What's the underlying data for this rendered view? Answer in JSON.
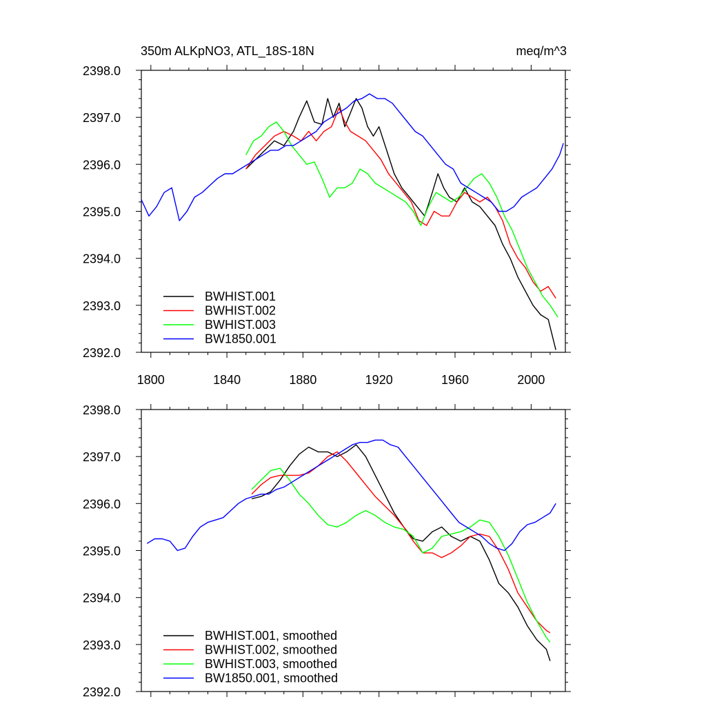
{
  "chart_data": [
    {
      "type": "line",
      "title": "350m ALKpNO3, ATL_18S-18N",
      "units": "meq/m^3",
      "xlim": [
        1795,
        2018
      ],
      "ylim": [
        2392.0,
        2398.0
      ],
      "xticks": [
        1800,
        1840,
        1880,
        1920,
        1960,
        2000
      ],
      "xtick_labels": [
        "1800",
        "1840",
        "1880",
        "1920",
        "1960",
        "2000"
      ],
      "yticks": [
        2392.0,
        2393.0,
        2394.0,
        2395.0,
        2396.0,
        2397.0,
        2398.0
      ],
      "ytick_labels": [
        "2392.0",
        "2393.0",
        "2394.0",
        "2395.0",
        "2396.0",
        "2397.0",
        "2398.0"
      ],
      "legend_position": "bottom-left",
      "series": [
        {
          "name": "BWHIST.001",
          "color": "#000000",
          "x": [
            1850,
            1855,
            1860,
            1865,
            1870,
            1875,
            1878,
            1882,
            1886,
            1890,
            1893,
            1896,
            1899,
            1902,
            1905,
            1908,
            1911,
            1914,
            1917,
            1920,
            1924,
            1928,
            1932,
            1936,
            1940,
            1944,
            1948,
            1951,
            1954,
            1957,
            1961,
            1965,
            1969,
            1973,
            1977,
            1981,
            1985,
            1989,
            1993,
            1997,
            2001,
            2005,
            2009,
            2013
          ],
          "y": [
            2395.9,
            2396.1,
            2396.3,
            2396.5,
            2396.4,
            2396.7,
            2397.0,
            2397.35,
            2396.9,
            2396.85,
            2397.4,
            2397.0,
            2397.3,
            2396.8,
            2397.1,
            2397.4,
            2397.2,
            2396.8,
            2396.6,
            2396.8,
            2396.3,
            2395.8,
            2395.5,
            2395.3,
            2395.1,
            2394.9,
            2395.4,
            2395.8,
            2395.5,
            2395.3,
            2395.2,
            2395.5,
            2395.2,
            2395.1,
            2394.9,
            2394.7,
            2394.3,
            2394.0,
            2393.6,
            2393.3,
            2393.0,
            2392.8,
            2392.7,
            2392.05
          ]
        },
        {
          "name": "BWHIST.002",
          "color": "#ff0000",
          "x": [
            1850,
            1855,
            1860,
            1865,
            1870,
            1875,
            1879,
            1883,
            1887,
            1891,
            1895,
            1899,
            1902,
            1905,
            1909,
            1913,
            1917,
            1921,
            1925,
            1929,
            1933,
            1937,
            1941,
            1945,
            1949,
            1953,
            1957,
            1961,
            1965,
            1969,
            1973,
            1977,
            1981,
            1985,
            1989,
            1993,
            1997,
            2001,
            2005,
            2009,
            2013
          ],
          "y": [
            2395.9,
            2396.2,
            2396.4,
            2396.6,
            2396.7,
            2396.6,
            2396.5,
            2396.7,
            2396.5,
            2396.7,
            2396.8,
            2397.2,
            2396.9,
            2396.7,
            2396.6,
            2396.5,
            2396.3,
            2396.1,
            2395.8,
            2395.6,
            2395.4,
            2395.2,
            2394.8,
            2394.7,
            2395.0,
            2394.9,
            2394.9,
            2395.2,
            2395.4,
            2395.3,
            2395.2,
            2395.3,
            2395.1,
            2394.8,
            2394.3,
            2394.0,
            2393.8,
            2393.5,
            2393.3,
            2393.4,
            2393.15
          ]
        },
        {
          "name": "BWHIST.003",
          "color": "#00ff00",
          "x": [
            1850,
            1854,
            1858,
            1862,
            1866,
            1870,
            1874,
            1878,
            1882,
            1886,
            1890,
            1894,
            1898,
            1902,
            1906,
            1910,
            1914,
            1918,
            1922,
            1926,
            1930,
            1934,
            1938,
            1942,
            1946,
            1950,
            1954,
            1958,
            1962,
            1966,
            1970,
            1974,
            1978,
            1982,
            1986,
            1990,
            1994,
            1998,
            2002,
            2006,
            2010,
            2014
          ],
          "y": [
            2396.2,
            2396.5,
            2396.6,
            2396.8,
            2396.9,
            2396.7,
            2396.4,
            2396.2,
            2396.0,
            2396.05,
            2395.7,
            2395.3,
            2395.5,
            2395.5,
            2395.6,
            2395.9,
            2395.8,
            2395.6,
            2395.5,
            2395.4,
            2395.3,
            2395.2,
            2395.0,
            2394.7,
            2395.1,
            2395.4,
            2395.3,
            2395.2,
            2395.3,
            2395.5,
            2395.7,
            2395.8,
            2395.6,
            2395.3,
            2394.9,
            2394.6,
            2394.2,
            2393.8,
            2393.5,
            2393.2,
            2393.0,
            2392.75
          ]
        },
        {
          "name": "BW1850.001",
          "color": "#0000ff",
          "x": [
            1795,
            1799,
            1803,
            1807,
            1811,
            1815,
            1819,
            1823,
            1827,
            1831,
            1835,
            1839,
            1843,
            1847,
            1851,
            1855,
            1859,
            1863,
            1867,
            1871,
            1875,
            1879,
            1883,
            1887,
            1891,
            1895,
            1899,
            1903,
            1907,
            1911,
            1915,
            1919,
            1923,
            1927,
            1931,
            1935,
            1939,
            1943,
            1947,
            1951,
            1955,
            1959,
            1963,
            1967,
            1971,
            1975,
            1979,
            1983,
            1987,
            1991,
            1995,
            1999,
            2003,
            2007,
            2011,
            2015,
            2017
          ],
          "y": [
            2395.25,
            2394.9,
            2395.1,
            2395.4,
            2395.5,
            2394.8,
            2395.0,
            2395.3,
            2395.4,
            2395.55,
            2395.7,
            2395.8,
            2395.8,
            2395.9,
            2396.0,
            2396.1,
            2396.2,
            2396.3,
            2396.3,
            2396.4,
            2396.4,
            2396.5,
            2396.6,
            2396.7,
            2396.9,
            2397.0,
            2397.1,
            2397.2,
            2397.35,
            2397.4,
            2397.5,
            2397.4,
            2397.4,
            2397.3,
            2397.1,
            2396.9,
            2396.7,
            2396.6,
            2396.4,
            2396.2,
            2396.0,
            2395.9,
            2395.6,
            2395.5,
            2395.4,
            2395.3,
            2395.2,
            2395.0,
            2395.0,
            2395.1,
            2395.3,
            2395.4,
            2395.5,
            2395.7,
            2395.9,
            2396.2,
            2396.45
          ]
        }
      ]
    },
    {
      "type": "line",
      "xlim": [
        1795,
        2018
      ],
      "ylim": [
        2392.0,
        2398.0
      ],
      "xticks": [
        1800,
        1840,
        1880,
        1920,
        1960,
        2000
      ],
      "yticks": [
        2392.0,
        2393.0,
        2394.0,
        2395.0,
        2396.0,
        2397.0,
        2398.0
      ],
      "ytick_labels": [
        "2392.0",
        "2393.0",
        "2394.0",
        "2395.0",
        "2396.0",
        "2397.0",
        "2398.0"
      ],
      "legend_position": "bottom-left",
      "series": [
        {
          "name": "BWHIST.001, smoothed",
          "color": "#000000",
          "x": [
            1853,
            1858,
            1863,
            1868,
            1873,
            1878,
            1883,
            1888,
            1893,
            1898,
            1903,
            1908,
            1913,
            1918,
            1923,
            1928,
            1933,
            1938,
            1943,
            1948,
            1953,
            1958,
            1963,
            1968,
            1973,
            1978,
            1983,
            1988,
            1993,
            1998,
            2003,
            2008,
            2010
          ],
          "y": [
            2396.1,
            2396.15,
            2396.25,
            2396.5,
            2396.8,
            2397.05,
            2397.2,
            2397.1,
            2397.1,
            2397.0,
            2397.1,
            2397.25,
            2397.0,
            2396.6,
            2396.2,
            2395.8,
            2395.5,
            2395.25,
            2395.2,
            2395.4,
            2395.5,
            2395.3,
            2395.2,
            2395.3,
            2395.2,
            2394.8,
            2394.3,
            2394.1,
            2393.8,
            2393.4,
            2393.1,
            2392.9,
            2392.65
          ]
        },
        {
          "name": "BWHIST.002, smoothed",
          "color": "#ff0000",
          "x": [
            1853,
            1858,
            1863,
            1868,
            1873,
            1878,
            1883,
            1888,
            1893,
            1898,
            1903,
            1908,
            1913,
            1918,
            1923,
            1928,
            1933,
            1938,
            1943,
            1948,
            1953,
            1958,
            1963,
            1968,
            1973,
            1978,
            1983,
            1988,
            1993,
            1998,
            2003,
            2008,
            2010
          ],
          "y": [
            2396.2,
            2396.4,
            2396.55,
            2396.6,
            2396.6,
            2396.6,
            2396.65,
            2396.8,
            2397.0,
            2397.1,
            2396.9,
            2396.65,
            2396.4,
            2396.15,
            2395.95,
            2395.75,
            2395.5,
            2395.2,
            2394.95,
            2394.95,
            2394.85,
            2394.95,
            2395.1,
            2395.3,
            2395.35,
            2395.3,
            2395.0,
            2394.6,
            2394.1,
            2393.8,
            2393.5,
            2393.3,
            2393.25
          ]
        },
        {
          "name": "BWHIST.003, smoothed",
          "color": "#00ff00",
          "x": [
            1853,
            1858,
            1863,
            1868,
            1873,
            1878,
            1883,
            1888,
            1893,
            1898,
            1903,
            1908,
            1913,
            1918,
            1923,
            1928,
            1933,
            1938,
            1943,
            1948,
            1953,
            1958,
            1963,
            1968,
            1973,
            1978,
            1983,
            1988,
            1993,
            1998,
            2003,
            2008,
            2010
          ],
          "y": [
            2396.3,
            2396.5,
            2396.7,
            2396.75,
            2396.5,
            2396.2,
            2396.0,
            2395.75,
            2395.55,
            2395.5,
            2395.6,
            2395.75,
            2395.85,
            2395.75,
            2395.6,
            2395.5,
            2395.45,
            2395.3,
            2394.95,
            2395.05,
            2395.3,
            2395.35,
            2395.4,
            2395.5,
            2395.65,
            2395.6,
            2395.3,
            2394.9,
            2394.4,
            2393.9,
            2393.5,
            2393.15,
            2393.05
          ]
        },
        {
          "name": "BW1850.001, smoothed",
          "color": "#0000ff",
          "x": [
            1798,
            1802,
            1806,
            1810,
            1814,
            1818,
            1822,
            1826,
            1830,
            1834,
            1838,
            1842,
            1846,
            1850,
            1854,
            1858,
            1862,
            1866,
            1870,
            1874,
            1878,
            1882,
            1886,
            1890,
            1894,
            1898,
            1902,
            1906,
            1910,
            1914,
            1918,
            1922,
            1926,
            1930,
            1934,
            1938,
            1942,
            1946,
            1950,
            1954,
            1958,
            1962,
            1966,
            1970,
            1974,
            1978,
            1982,
            1986,
            1990,
            1994,
            1998,
            2002,
            2006,
            2010,
            2013
          ],
          "y": [
            2395.15,
            2395.25,
            2395.25,
            2395.2,
            2395.0,
            2395.05,
            2395.3,
            2395.5,
            2395.6,
            2395.65,
            2395.7,
            2395.85,
            2396.0,
            2396.1,
            2396.15,
            2396.2,
            2396.2,
            2396.3,
            2396.35,
            2396.45,
            2396.55,
            2396.65,
            2396.75,
            2396.85,
            2396.95,
            2397.05,
            2397.15,
            2397.25,
            2397.3,
            2397.3,
            2397.35,
            2397.35,
            2397.25,
            2397.2,
            2397.0,
            2396.8,
            2396.6,
            2396.4,
            2396.2,
            2396.0,
            2395.8,
            2395.6,
            2395.5,
            2395.4,
            2395.3,
            2395.15,
            2395.05,
            2395.0,
            2395.15,
            2395.4,
            2395.55,
            2395.6,
            2395.7,
            2395.8,
            2396.0
          ]
        }
      ]
    }
  ]
}
